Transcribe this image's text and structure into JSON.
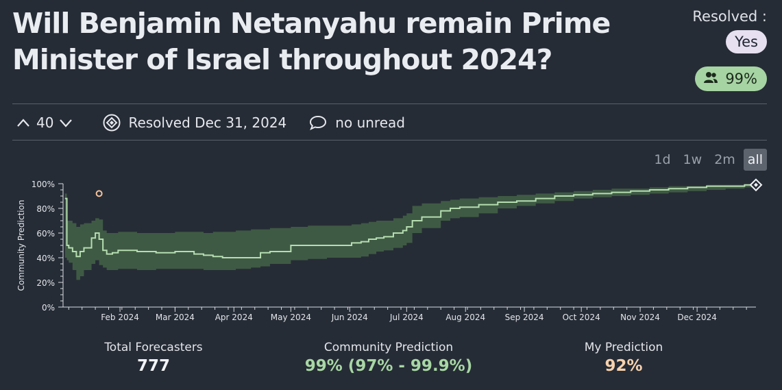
{
  "question": {
    "title": "Will Benjamin Netanyahu remain Prime Minister of Israel throughout 2024?"
  },
  "resolution": {
    "label": "Resolved :",
    "value": "Yes",
    "community_pct": "99%"
  },
  "toolbar": {
    "vote_count": "40",
    "resolved_text": "Resolved Dec 31, 2024",
    "comments_text": "no unread"
  },
  "timeframes": [
    "1d",
    "1w",
    "2m",
    "all"
  ],
  "stats": {
    "total_label": "Total Forecasters",
    "total_value": "777",
    "community_label": "Community Prediction",
    "community_value": "99% (97% - 99.9%)",
    "my_label": "My Prediction",
    "my_value": "92%"
  },
  "colors": {
    "background": "#262c36",
    "band": "#3f5a44",
    "line": "#b6deb1",
    "my_prediction": "#f4c39c",
    "community_text": "#a8d7a4",
    "my_text": "#f6d2ae"
  },
  "chart_data": {
    "type": "line",
    "ylabel": "Community Prediction",
    "ylim": [
      0,
      100
    ],
    "y_ticks": [
      "0%",
      "20%",
      "40%",
      "60%",
      "80%",
      "100%"
    ],
    "x_ticks": [
      "Feb 2024",
      "Mar 2024",
      "Apr 2024",
      "May 2024",
      "Jun 2024",
      "Jul 2024",
      "Aug 2024",
      "Sep 2024",
      "Oct 2024",
      "Nov 2024",
      "Dec 2024"
    ],
    "x_tick_days": [
      31,
      60,
      91,
      121,
      152,
      182,
      213,
      244,
      274,
      305,
      335
    ],
    "x_range_days": [
      1,
      366
    ],
    "series": [
      {
        "x": [
          2,
          3,
          4,
          6,
          8,
          10,
          12,
          16,
          18,
          20,
          22,
          24,
          27,
          30,
          40,
          50,
          60,
          70,
          75,
          80,
          85,
          92,
          100,
          105,
          110,
          121,
          130,
          140,
          150,
          153,
          158,
          162,
          166,
          170,
          175,
          180,
          182,
          185,
          190,
          200,
          205,
          210,
          220,
          230,
          240,
          250,
          260,
          270,
          280,
          290,
          300,
          310,
          320,
          330,
          340,
          350,
          360,
          366
        ],
        "y": [
          88,
          50,
          48,
          45,
          41,
          45,
          48,
          56,
          60,
          55,
          46,
          43,
          44,
          46,
          45,
          44,
          45,
          43,
          42,
          41,
          40,
          40,
          40,
          44,
          45,
          50,
          50,
          50,
          50,
          52,
          53,
          55,
          56,
          57,
          60,
          62,
          65,
          70,
          73,
          78,
          80,
          81,
          83,
          85,
          86,
          88,
          90,
          91,
          92,
          93,
          94,
          95,
          96,
          97,
          98,
          98,
          99,
          99
        ],
        "lower": [
          40,
          38,
          36,
          30,
          22,
          25,
          30,
          35,
          38,
          34,
          32,
          30,
          30,
          31,
          30,
          31,
          31,
          31,
          30,
          30,
          30,
          31,
          32,
          33,
          35,
          38,
          39,
          40,
          40,
          40,
          41,
          43,
          45,
          46,
          48,
          50,
          52,
          60,
          64,
          70,
          72,
          73,
          76,
          80,
          82,
          84,
          86,
          88,
          89,
          90,
          91,
          92,
          93,
          94,
          95,
          96,
          97,
          97
        ],
        "upper": [
          92,
          70,
          70,
          68,
          65,
          67,
          68,
          70,
          72,
          71,
          62,
          60,
          60,
          61,
          60,
          60,
          61,
          61,
          60,
          61,
          61,
          62,
          63,
          63,
          64,
          65,
          66,
          66,
          66,
          67,
          68,
          69,
          70,
          70,
          72,
          74,
          76,
          82,
          84,
          86,
          87,
          88,
          89,
          90,
          91,
          92,
          93,
          94,
          95,
          96,
          96,
          97,
          98,
          98,
          99,
          99,
          99.5,
          99.9
        ]
      }
    ],
    "my_prediction": {
      "x": 20,
      "y": 92
    }
  }
}
